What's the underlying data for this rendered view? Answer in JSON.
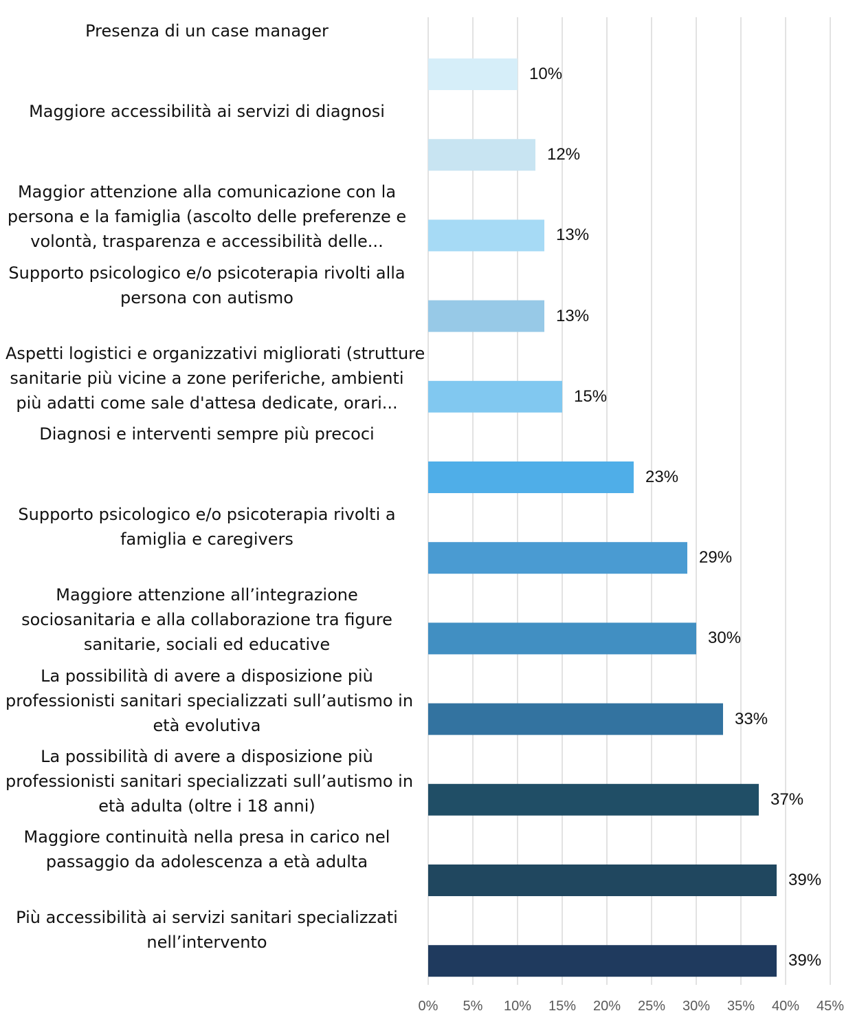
{
  "chart_data": {
    "type": "bar",
    "orientation": "horizontal",
    "title": "",
    "xlabel": "",
    "ylabel": "",
    "xlim": [
      0,
      45
    ],
    "x_ticks": [
      "0%",
      "5%",
      "10%",
      "15%",
      "20%",
      "25%",
      "30%",
      "35%",
      "40%",
      "45%"
    ],
    "grid": "vertical",
    "legend": "none",
    "categories": [
      [
        "Presenza di un case manager"
      ],
      [
        "Maggiore accessibilità ai servizi di diagnosi"
      ],
      [
        "Maggior attenzione alla comunicazione con la",
        "persona e la famiglia (ascolto delle preferenze e",
        "volontà, trasparenza e accessibilità delle..."
      ],
      [
        "Supporto psicologico e/o psicoterapia rivolti alla",
        "persona con autismo"
      ],
      [
        "Aspetti logistici e organizzativi migliorati (strutture",
        "sanitarie più vicine a zone periferiche, ambienti",
        "più adatti come sale d'attesa dedicate, orari..."
      ],
      [
        "Diagnosi e interventi sempre più precoci"
      ],
      [
        "Supporto psicologico e/o psicoterapia rivolti a",
        "famiglia e caregivers"
      ],
      [
        "Maggiore attenzione all’integrazione",
        "sociosanitaria e alla collaborazione tra figure",
        "sanitarie, sociali ed educative"
      ],
      [
        "La possibilità di avere a disposizione più",
        "professionisti sanitari specializzati sull’autismo in",
        "età evolutiva"
      ],
      [
        "La possibilità di avere a disposizione più",
        "professionisti sanitari specializzati sull’autismo in",
        "età adulta (oltre i 18 anni)"
      ],
      [
        "Maggiore continuità nella presa in carico nel",
        "passaggio da adolescenza a età adulta"
      ],
      [
        "Più accessibilità ai servizi sanitari specializzati",
        "nell’intervento"
      ]
    ],
    "values": [
      10,
      12,
      13,
      13,
      15,
      23,
      29,
      30,
      33,
      37,
      39,
      39
    ],
    "value_labels": [
      "10%",
      "12%",
      "13%",
      "13%",
      "15%",
      "23%",
      "29%",
      "30%",
      "33%",
      "37%",
      "39%",
      "39%"
    ],
    "colors": [
      "#d6eef9",
      "#c8e4f2",
      "#a6daf5",
      "#97c9e7",
      "#81c8f0",
      "#4faee8",
      "#4a9bd2",
      "#418fc2",
      "#3373a0",
      "#204e66",
      "#20475f",
      "#1f3a5e"
    ],
    "gridline_color": "#d9d9d9"
  }
}
